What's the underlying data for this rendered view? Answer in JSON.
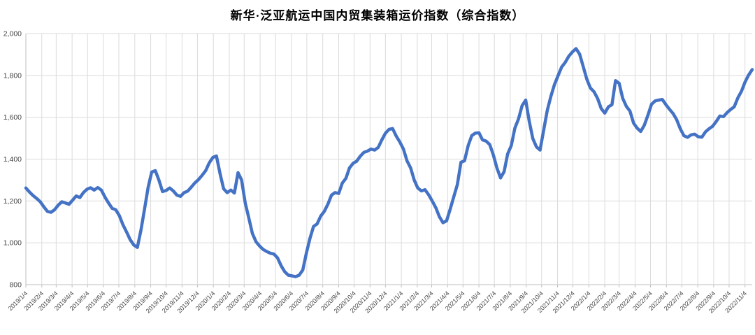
{
  "page": {
    "background": "#FFFFFF"
  },
  "chart_data": {
    "type": "line",
    "title": "新华·泛亚航运中国内贸集装箱运价指数（综合指数）",
    "x_ticks": [
      "2019/1/4",
      "2019/2/4",
      "2019/3/4",
      "2019/4/4",
      "2019/5/4",
      "2019/6/4",
      "2019/7/4",
      "2019/8/4",
      "2019/9/4",
      "2019/10/4",
      "2019/11/4",
      "2019/12/4",
      "2020/1/4",
      "2020/2/4",
      "2020/3/4",
      "2020/4/4",
      "2020/5/4",
      "2020/6/4",
      "2020/7/4",
      "2020/8/4",
      "2020/9/4",
      "2020/10/4",
      "2020/11/4",
      "2020/12/4",
      "2021/1/4",
      "2021/2/4",
      "2021/3/4",
      "2021/4/4",
      "2021/5/4",
      "2021/6/4",
      "2021/7/4",
      "2021/8/4",
      "2021/9/4",
      "2021/10/4",
      "2021/11/4",
      "2021/12/4",
      "2022/1/4",
      "2022/2/4",
      "2022/3/4",
      "2022/4/4",
      "2022/5/4",
      "2022/6/4",
      "2022/7/4",
      "2022/8/4",
      "2022/9/4",
      "2022/10/4",
      "2022/11/4"
    ],
    "y_ticks": [
      "800",
      "1,000",
      "1,200",
      "1,400",
      "1,600",
      "1,800",
      "2,000"
    ],
    "y_min": 800,
    "y_max": 2000,
    "grid": {
      "show": true,
      "color": "#DBDBDB"
    },
    "axis_color": "#BFBFBF",
    "tick_label_color": "#444444",
    "legend_position": "none",
    "series": [
      {
        "name": "综合指数",
        "color": "#4472C4",
        "stroke_width": 4.5,
        "start_date": "2019/1/4",
        "interval_days": 7,
        "values": [
          1262,
          1243,
          1226,
          1212,
          1196,
          1172,
          1150,
          1146,
          1158,
          1180,
          1196,
          1190,
          1184,
          1204,
          1224,
          1216,
          1240,
          1256,
          1263,
          1252,
          1264,
          1252,
          1218,
          1190,
          1165,
          1158,
          1130,
          1086,
          1052,
          1015,
          990,
          978,
          1060,
          1160,
          1265,
          1338,
          1345,
          1300,
          1245,
          1250,
          1262,
          1248,
          1228,
          1222,
          1240,
          1247,
          1266,
          1286,
          1302,
          1322,
          1345,
          1382,
          1408,
          1415,
          1330,
          1258,
          1240,
          1252,
          1238,
          1335,
          1300,
          1190,
          1119,
          1045,
          1005,
          985,
          968,
          958,
          950,
          946,
          928,
          890,
          862,
          845,
          842,
          838,
          845,
          870,
          950,
          1020,
          1078,
          1090,
          1128,
          1150,
          1185,
          1228,
          1240,
          1236,
          1285,
          1308,
          1358,
          1380,
          1390,
          1414,
          1432,
          1438,
          1448,
          1443,
          1456,
          1492,
          1524,
          1542,
          1546,
          1510,
          1482,
          1448,
          1392,
          1358,
          1300,
          1262,
          1248,
          1254,
          1230,
          1200,
          1168,
          1125,
          1096,
          1105,
          1160,
          1220,
          1278,
          1385,
          1392,
          1465,
          1512,
          1524,
          1526,
          1492,
          1486,
          1470,
          1420,
          1358,
          1310,
          1340,
          1425,
          1465,
          1548,
          1592,
          1655,
          1682,
          1580,
          1498,
          1458,
          1443,
          1538,
          1632,
          1700,
          1756,
          1798,
          1840,
          1862,
          1892,
          1912,
          1928,
          1902,
          1842,
          1782,
          1740,
          1722,
          1690,
          1642,
          1620,
          1650,
          1660,
          1775,
          1762,
          1690,
          1652,
          1630,
          1572,
          1548,
          1532,
          1562,
          1610,
          1662,
          1678,
          1682,
          1685,
          1660,
          1638,
          1618,
          1588,
          1545,
          1512,
          1504,
          1516,
          1519,
          1507,
          1505,
          1530,
          1545,
          1557,
          1580,
          1606,
          1603,
          1622,
          1637,
          1650,
          1692,
          1724,
          1768,
          1802,
          1828
        ]
      }
    ]
  }
}
